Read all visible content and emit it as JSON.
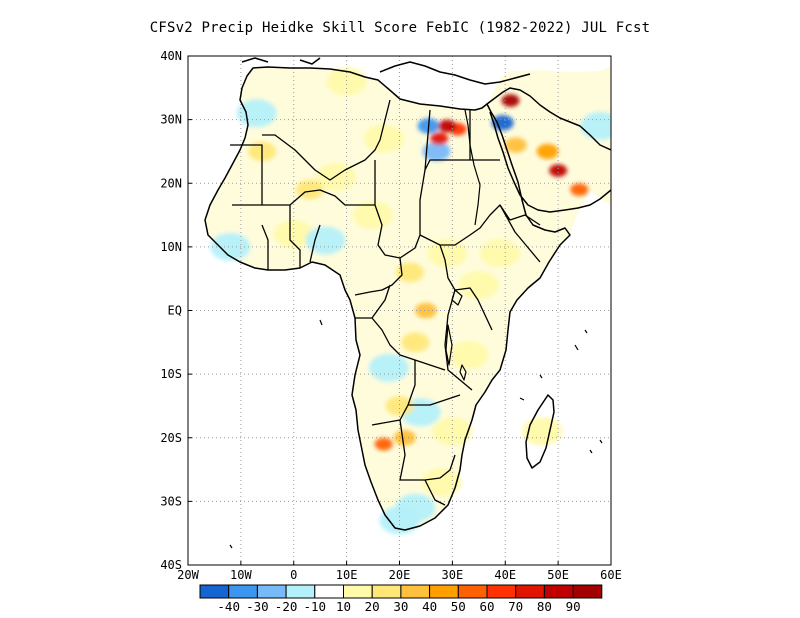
{
  "title": "CFSv2 Precip Heidke Skill Score FebIC (1982-2022) JUL Fcst",
  "map": {
    "lon_range": [
      -20,
      60
    ],
    "lat_range": [
      -40,
      40
    ],
    "grid": true,
    "lon_ticks": [
      {
        "value": -20,
        "label": "20W"
      },
      {
        "value": -10,
        "label": "10W"
      },
      {
        "value": 0,
        "label": "0"
      },
      {
        "value": 10,
        "label": "10E"
      },
      {
        "value": 20,
        "label": "20E"
      },
      {
        "value": 30,
        "label": "30E"
      },
      {
        "value": 40,
        "label": "40E"
      },
      {
        "value": 50,
        "label": "50E"
      },
      {
        "value": 60,
        "label": "60E"
      }
    ],
    "lat_ticks": [
      {
        "value": 40,
        "label": "40N"
      },
      {
        "value": 30,
        "label": "30N"
      },
      {
        "value": 20,
        "label": "20N"
      },
      {
        "value": 10,
        "label": "10N"
      },
      {
        "value": 0,
        "label": "EQ"
      },
      {
        "value": -10,
        "label": "10S"
      },
      {
        "value": -20,
        "label": "20S"
      },
      {
        "value": -30,
        "label": "30S"
      },
      {
        "value": -40,
        "label": "40S"
      }
    ]
  },
  "colorbar": {
    "colors": [
      "#1464d2",
      "#3c96f0",
      "#78b9fa",
      "#b4f0fa",
      "#ffffff",
      "#fffaaa",
      "#ffe878",
      "#ffc03c",
      "#ffa000",
      "#ff6000",
      "#ff3200",
      "#e11400",
      "#c00000",
      "#a50000"
    ],
    "labels": [
      "-40",
      "-30",
      "-20",
      "-10",
      "10",
      "20",
      "30",
      "40",
      "50",
      "60",
      "70",
      "80",
      "90"
    ]
  },
  "skill_regions": [
    {
      "lon": 29,
      "lat": 29,
      "level": "80"
    },
    {
      "lon": 27.5,
      "lat": 27,
      "level": "70"
    },
    {
      "lon": 31,
      "lat": 28.5,
      "level": "60"
    },
    {
      "lon": 25.5,
      "lat": 29,
      "level": "-30"
    },
    {
      "lon": 27,
      "lat": 25,
      "level": "-20"
    },
    {
      "lon": 41,
      "lat": 33,
      "level": "90"
    },
    {
      "lon": 39.5,
      "lat": 29.5,
      "level": "-40"
    },
    {
      "lon": 42,
      "lat": 26,
      "level": "30"
    },
    {
      "lon": 50,
      "lat": 22,
      "level": "80"
    },
    {
      "lon": 48,
      "lat": 25,
      "level": "40"
    },
    {
      "lon": 54,
      "lat": 19,
      "level": "50"
    },
    {
      "lon": 58,
      "lat": 29,
      "level": "-10"
    },
    {
      "lon": 3,
      "lat": 19,
      "level": "20"
    },
    {
      "lon": -6,
      "lat": 25,
      "level": "20"
    },
    {
      "lon": 8,
      "lat": 21,
      "level": "10"
    },
    {
      "lon": 15,
      "lat": 15,
      "level": "10"
    },
    {
      "lon": 0,
      "lat": 12,
      "level": "10"
    },
    {
      "lon": -12,
      "lat": 10,
      "level": "-10"
    },
    {
      "lon": 6,
      "lat": 11,
      "level": "-10"
    },
    {
      "lon": 17,
      "lat": 27,
      "level": "10"
    },
    {
      "lon": 22,
      "lat": 6,
      "level": "20"
    },
    {
      "lon": 25,
      "lat": 0,
      "level": "30"
    },
    {
      "lon": 23,
      "lat": -5,
      "level": "20"
    },
    {
      "lon": 18,
      "lat": -9,
      "level": "-10"
    },
    {
      "lon": 20,
      "lat": -15,
      "level": "20"
    },
    {
      "lon": 17,
      "lat": -21,
      "level": "50"
    },
    {
      "lon": 21,
      "lat": -20,
      "level": "30"
    },
    {
      "lon": 24,
      "lat": -16,
      "level": "-10"
    },
    {
      "lon": 30,
      "lat": -19,
      "level": "10"
    },
    {
      "lon": 28,
      "lat": -27,
      "level": "10"
    },
    {
      "lon": 23,
      "lat": -31,
      "level": "-10"
    },
    {
      "lon": 20,
      "lat": -33,
      "level": "-10"
    },
    {
      "lon": 35,
      "lat": 4,
      "level": "10"
    },
    {
      "lon": 39,
      "lat": 9,
      "level": "10"
    },
    {
      "lon": 29,
      "lat": 9,
      "level": "10"
    },
    {
      "lon": 47,
      "lat": -19,
      "level": "10"
    },
    {
      "lon": 33,
      "lat": -7,
      "level": "10"
    },
    {
      "lon": -7,
      "lat": 31,
      "level": "-10"
    },
    {
      "lon": 10,
      "lat": 36,
      "level": "10"
    }
  ]
}
